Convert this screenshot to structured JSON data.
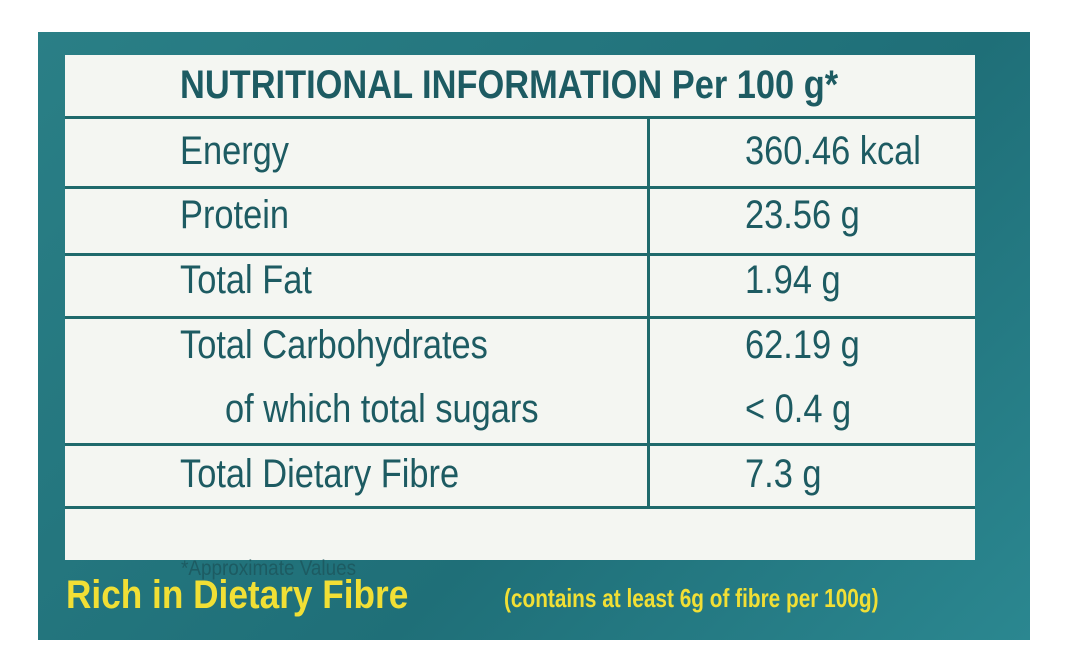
{
  "header": {
    "title": "NUTRITIONAL INFORMATION Per 100 g*"
  },
  "table": {
    "rows": [
      [
        "Energy",
        "360.46 kcal"
      ],
      [
        "Protein",
        "23.56 g"
      ],
      [
        "Total Fat",
        "1.94 g"
      ],
      [
        "Total Carbohydrates",
        "62.19 g"
      ],
      [
        "of which total sugars",
        "< 0.4 g"
      ],
      [
        "Total Dietary Fibre",
        "7.3 g"
      ]
    ]
  },
  "footnote": "*Approximate Values",
  "claim": {
    "title": "Rich in Dietary Fibre",
    "note": "(contains at least 6g of fibre per 100g)"
  }
}
